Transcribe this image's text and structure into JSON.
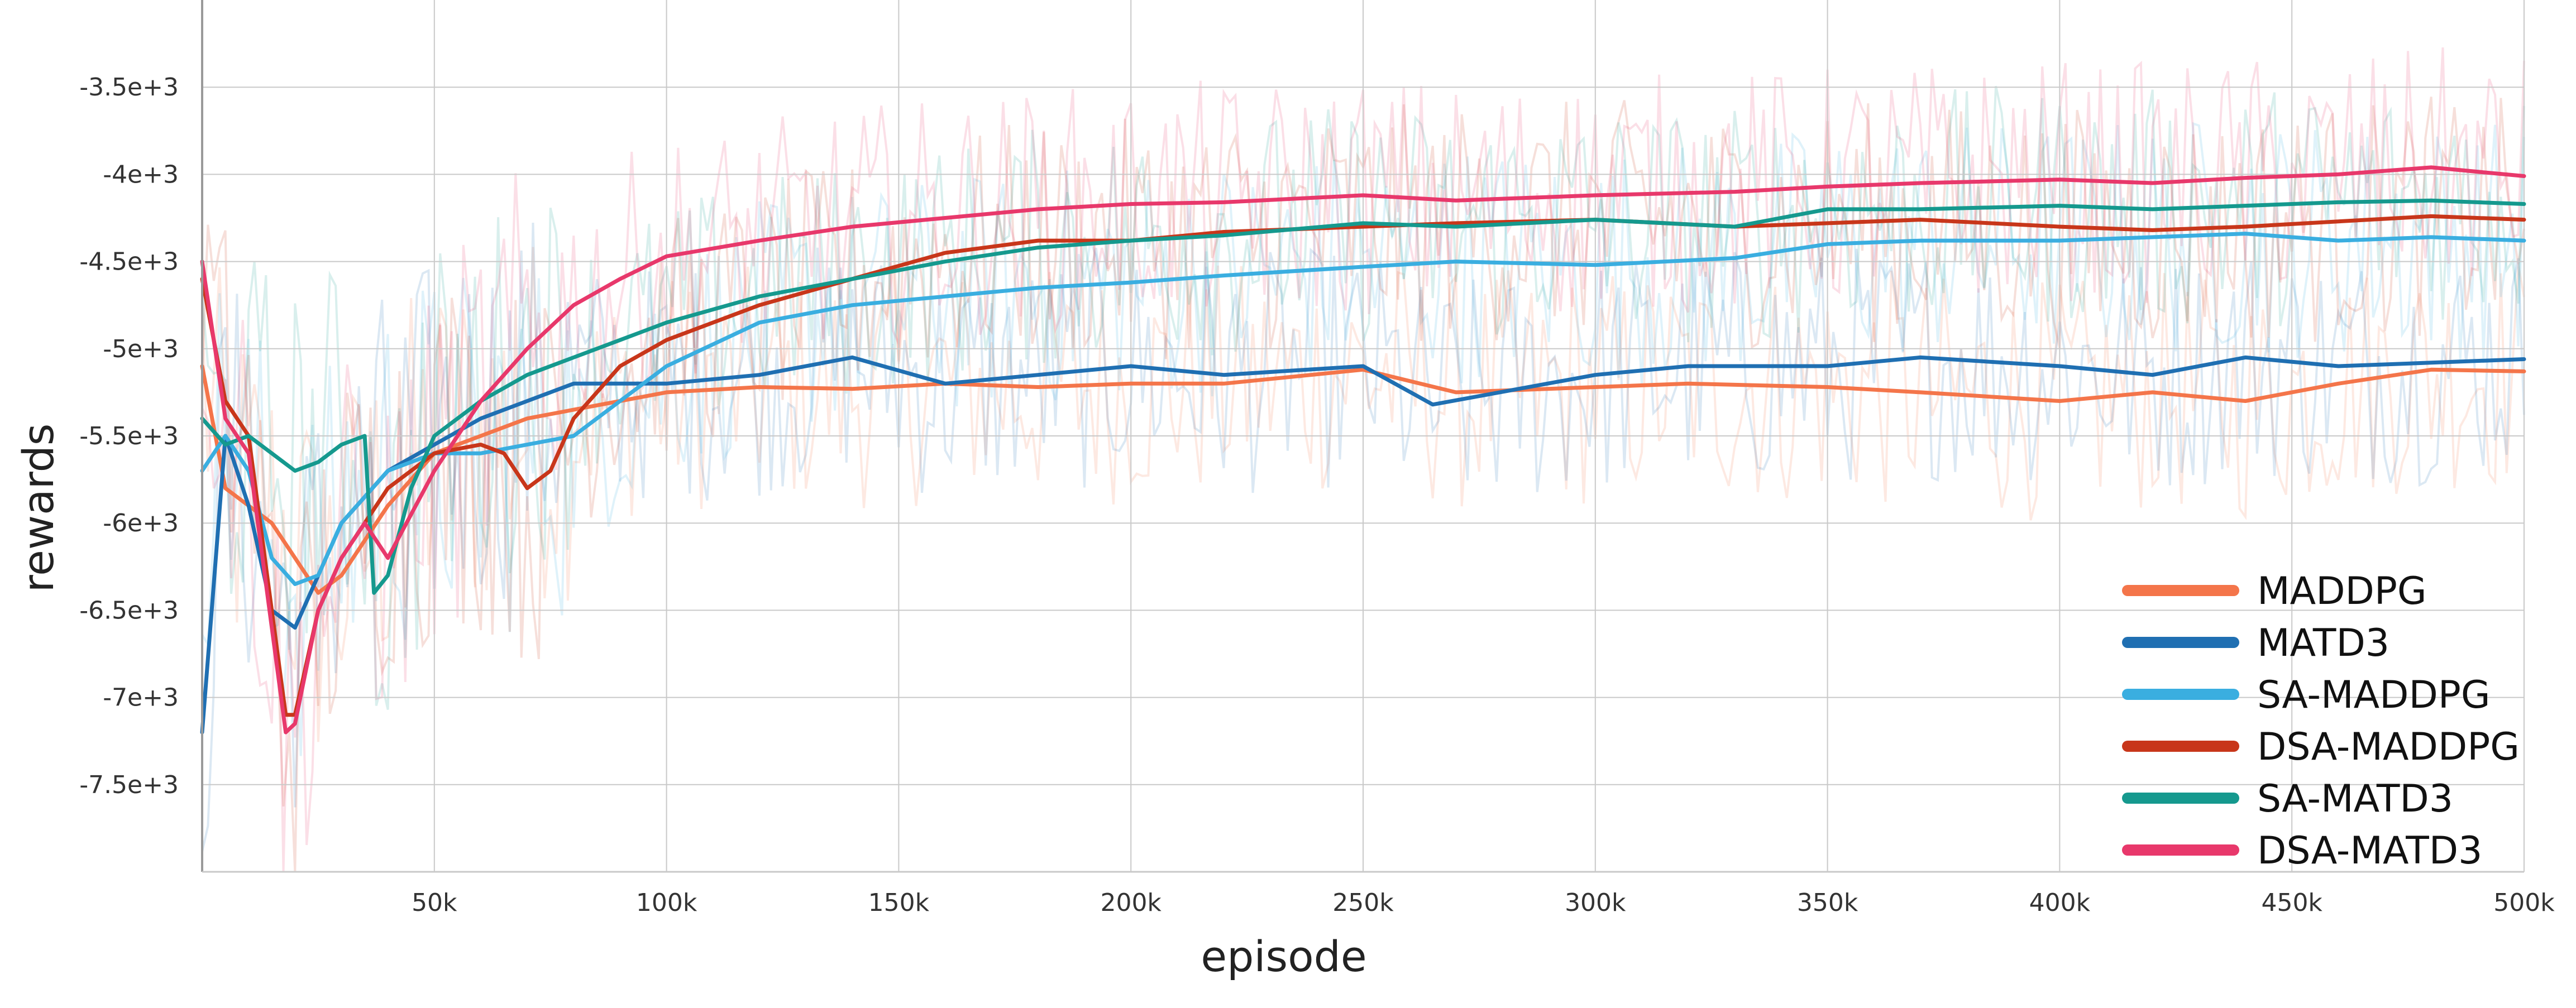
{
  "chart_data": {
    "type": "line",
    "xlabel": "episode",
    "ylabel": "rewards",
    "xlim": [
      0,
      500000
    ],
    "ylim": [
      -8000,
      -3000
    ],
    "x_ticks": [
      {
        "value": 50000,
        "label": "50k"
      },
      {
        "value": 100000,
        "label": "100k"
      },
      {
        "value": 150000,
        "label": "150k"
      },
      {
        "value": 200000,
        "label": "200k"
      },
      {
        "value": 250000,
        "label": "250k"
      },
      {
        "value": 300000,
        "label": "300k"
      },
      {
        "value": 350000,
        "label": "350k"
      },
      {
        "value": 400000,
        "label": "400k"
      },
      {
        "value": 450000,
        "label": "450k"
      },
      {
        "value": 500000,
        "label": "500k"
      }
    ],
    "y_ticks": [
      {
        "value": -3500,
        "label": "-3.5e+3"
      },
      {
        "value": -4000,
        "label": "-4e+3"
      },
      {
        "value": -4500,
        "label": "-4.5e+3"
      },
      {
        "value": -5000,
        "label": "-5e+3"
      },
      {
        "value": -5500,
        "label": "-5.5e+3"
      },
      {
        "value": -6000,
        "label": "-6e+3"
      },
      {
        "value": -6500,
        "label": "-6.5e+3"
      },
      {
        "value": -7000,
        "label": "-7e+3"
      },
      {
        "value": -7500,
        "label": "-7.5e+3"
      }
    ],
    "grid": true,
    "legend_position": "bottom-right",
    "raw_noise_background": true,
    "series": [
      {
        "name": "MADDPG",
        "color": "#f4754a",
        "x": [
          0,
          5000,
          10000,
          15000,
          20000,
          25000,
          30000,
          40000,
          50000,
          60000,
          70000,
          80000,
          90000,
          100000,
          120000,
          140000,
          160000,
          180000,
          200000,
          220000,
          250000,
          270000,
          300000,
          320000,
          350000,
          370000,
          400000,
          420000,
          440000,
          460000,
          480000,
          500000
        ],
        "y": [
          -5100,
          -5800,
          -5900,
          -6000,
          -6200,
          -6400,
          -6300,
          -5900,
          -5600,
          -5500,
          -5400,
          -5350,
          -5300,
          -5250,
          -5220,
          -5230,
          -5200,
          -5220,
          -5200,
          -5200,
          -5120,
          -5250,
          -5220,
          -5200,
          -5220,
          -5250,
          -5300,
          -5250,
          -5300,
          -5200,
          -5120,
          -5130
        ]
      },
      {
        "name": "MATD3",
        "color": "#1f6fb2",
        "x": [
          0,
          5000,
          10000,
          15000,
          20000,
          25000,
          30000,
          40000,
          50000,
          60000,
          70000,
          80000,
          90000,
          100000,
          120000,
          140000,
          160000,
          180000,
          200000,
          220000,
          250000,
          265000,
          300000,
          320000,
          350000,
          370000,
          400000,
          420000,
          440000,
          460000,
          480000,
          500000
        ],
        "y": [
          -7200,
          -5500,
          -5900,
          -6500,
          -6600,
          -6300,
          -6000,
          -5700,
          -5550,
          -5400,
          -5300,
          -5200,
          -5200,
          -5200,
          -5150,
          -5050,
          -5200,
          -5150,
          -5100,
          -5150,
          -5100,
          -5320,
          -5150,
          -5100,
          -5100,
          -5050,
          -5100,
          -5150,
          -5050,
          -5100,
          -5080,
          -5060
        ]
      },
      {
        "name": "SA-MADDPG",
        "color": "#3aaee0",
        "x": [
          0,
          5000,
          10000,
          15000,
          20000,
          25000,
          30000,
          40000,
          50000,
          60000,
          70000,
          80000,
          90000,
          100000,
          120000,
          140000,
          160000,
          180000,
          200000,
          220000,
          250000,
          270000,
          300000,
          330000,
          350000,
          370000,
          400000,
          420000,
          440000,
          460000,
          480000,
          500000
        ],
        "y": [
          -5700,
          -5500,
          -5700,
          -6200,
          -6350,
          -6300,
          -6000,
          -5700,
          -5600,
          -5600,
          -5550,
          -5500,
          -5300,
          -5100,
          -4850,
          -4750,
          -4700,
          -4650,
          -4620,
          -4580,
          -4530,
          -4500,
          -4520,
          -4480,
          -4400,
          -4380,
          -4380,
          -4360,
          -4340,
          -4380,
          -4360,
          -4380
        ]
      },
      {
        "name": "DSA-MADDPG",
        "color": "#c8361a",
        "x": [
          0,
          5000,
          10000,
          15000,
          18000,
          20000,
          25000,
          30000,
          40000,
          50000,
          60000,
          65000,
          70000,
          75000,
          80000,
          90000,
          100000,
          120000,
          140000,
          160000,
          180000,
          200000,
          220000,
          250000,
          270000,
          300000,
          330000,
          350000,
          370000,
          400000,
          420000,
          440000,
          460000,
          480000,
          500000
        ],
        "y": [
          -4600,
          -5300,
          -5500,
          -6500,
          -7100,
          -7100,
          -6500,
          -6200,
          -5800,
          -5600,
          -5550,
          -5600,
          -5800,
          -5700,
          -5400,
          -5100,
          -4950,
          -4750,
          -4600,
          -4450,
          -4380,
          -4380,
          -4330,
          -4300,
          -4280,
          -4260,
          -4300,
          -4280,
          -4260,
          -4300,
          -4320,
          -4300,
          -4270,
          -4240,
          -4260
        ]
      },
      {
        "name": "SA-MATD3",
        "color": "#15998e",
        "x": [
          0,
          5000,
          10000,
          15000,
          20000,
          25000,
          30000,
          35000,
          37000,
          40000,
          45000,
          50000,
          60000,
          70000,
          80000,
          90000,
          100000,
          120000,
          140000,
          160000,
          180000,
          200000,
          220000,
          250000,
          270000,
          300000,
          330000,
          350000,
          370000,
          400000,
          420000,
          440000,
          460000,
          480000,
          500000
        ],
        "y": [
          -5400,
          -5550,
          -5500,
          -5600,
          -5700,
          -5650,
          -5550,
          -5500,
          -6400,
          -6300,
          -5800,
          -5500,
          -5300,
          -5150,
          -5050,
          -4950,
          -4850,
          -4700,
          -4600,
          -4500,
          -4420,
          -4380,
          -4350,
          -4280,
          -4300,
          -4260,
          -4300,
          -4200,
          -4200,
          -4180,
          -4200,
          -4180,
          -4160,
          -4150,
          -4170
        ]
      },
      {
        "name": "DSA-MATD3",
        "color": "#e8386b",
        "x": [
          0,
          5000,
          10000,
          15000,
          18000,
          20000,
          25000,
          30000,
          35000,
          40000,
          50000,
          60000,
          70000,
          80000,
          90000,
          100000,
          120000,
          140000,
          160000,
          180000,
          200000,
          220000,
          250000,
          270000,
          300000,
          330000,
          350000,
          370000,
          400000,
          420000,
          440000,
          460000,
          480000,
          500000
        ],
        "y": [
          -4500,
          -5400,
          -5600,
          -6600,
          -7200,
          -7150,
          -6500,
          -6200,
          -6000,
          -6200,
          -5700,
          -5300,
          -5000,
          -4750,
          -4600,
          -4470,
          -4380,
          -4300,
          -4250,
          -4200,
          -4170,
          -4160,
          -4120,
          -4150,
          -4120,
          -4100,
          -4070,
          -4050,
          -4030,
          -4050,
          -4020,
          -4000,
          -3960,
          -4010
        ]
      }
    ]
  }
}
